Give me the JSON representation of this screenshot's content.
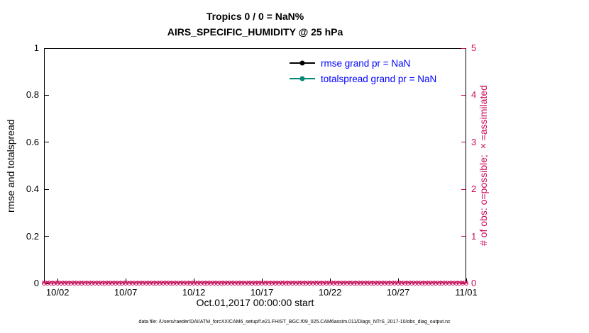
{
  "figure": {
    "title_line1": "Tropics 0 / 0 = NaN%",
    "title_line2": "AIRS_SPECIFIC_HUMIDITY @ 25 hPa",
    "footer": "data file: /Users/raeder/DAI/ATM_forcXX/CAM6_setup/f.e21.FHIST_BGC.f09_025.CAM6assim.011/Diags_NTrS_2017-10/obs_diag_output.nc"
  },
  "colors": {
    "obs_axis": "#cc0a5c",
    "rmse": "#000000",
    "totalspread": "#00897b",
    "legend_text": "#0000ff",
    "axis": "#000000"
  },
  "legend": [
    {
      "label": "rmse grand pr = NaN",
      "color_key": "rmse"
    },
    {
      "label": "totalspread grand pr = NaN",
      "color_key": "totalspread"
    }
  ],
  "chart_data": {
    "type": "line",
    "title": "Tropics 0 / 0 = NaN%",
    "subtitle": "AIRS_SPECIFIC_HUMIDITY @ 25 hPa",
    "xlabel": "Oct.01,2017 00:00:00 start",
    "ylabel_left": "rmse and totalspread",
    "ylabel_right": "# of obs: o=possible; ×=assimilated",
    "ylim_left": [
      0,
      1
    ],
    "yticks_left": [
      "0",
      "0.2",
      "0.4",
      "0.6",
      "0.8",
      "1"
    ],
    "ylim_right": [
      0,
      5
    ],
    "yticks_right": [
      "0",
      "1",
      "2",
      "3",
      "4",
      "5"
    ],
    "x_range_days": [
      0,
      31
    ],
    "xticks": [
      {
        "day": 1,
        "label": "10/02"
      },
      {
        "day": 6,
        "label": "10/07"
      },
      {
        "day": 11,
        "label": "10/12"
      },
      {
        "day": 16,
        "label": "10/17"
      },
      {
        "day": 21,
        "label": "10/22"
      },
      {
        "day": 26,
        "label": "10/27"
      },
      {
        "day": 31,
        "label": "11/01"
      }
    ],
    "grid": false,
    "legend_position": "upper-right-inside",
    "series": [
      {
        "name": "rmse",
        "legend": "rmse grand pr = NaN",
        "values": "NaN (no curve plotted)"
      },
      {
        "name": "totalspread",
        "legend": "totalspread grand pr = NaN",
        "values": "NaN (no curve plotted)"
      },
      {
        "name": "possible obs (o)",
        "marker": "o",
        "constant_value": 0
      },
      {
        "name": "assimilated obs (x)",
        "marker": "×",
        "constant_value": 0
      }
    ],
    "obs_marker": {
      "count": 125,
      "interval_days": 0.25,
      "value": 0
    }
  }
}
